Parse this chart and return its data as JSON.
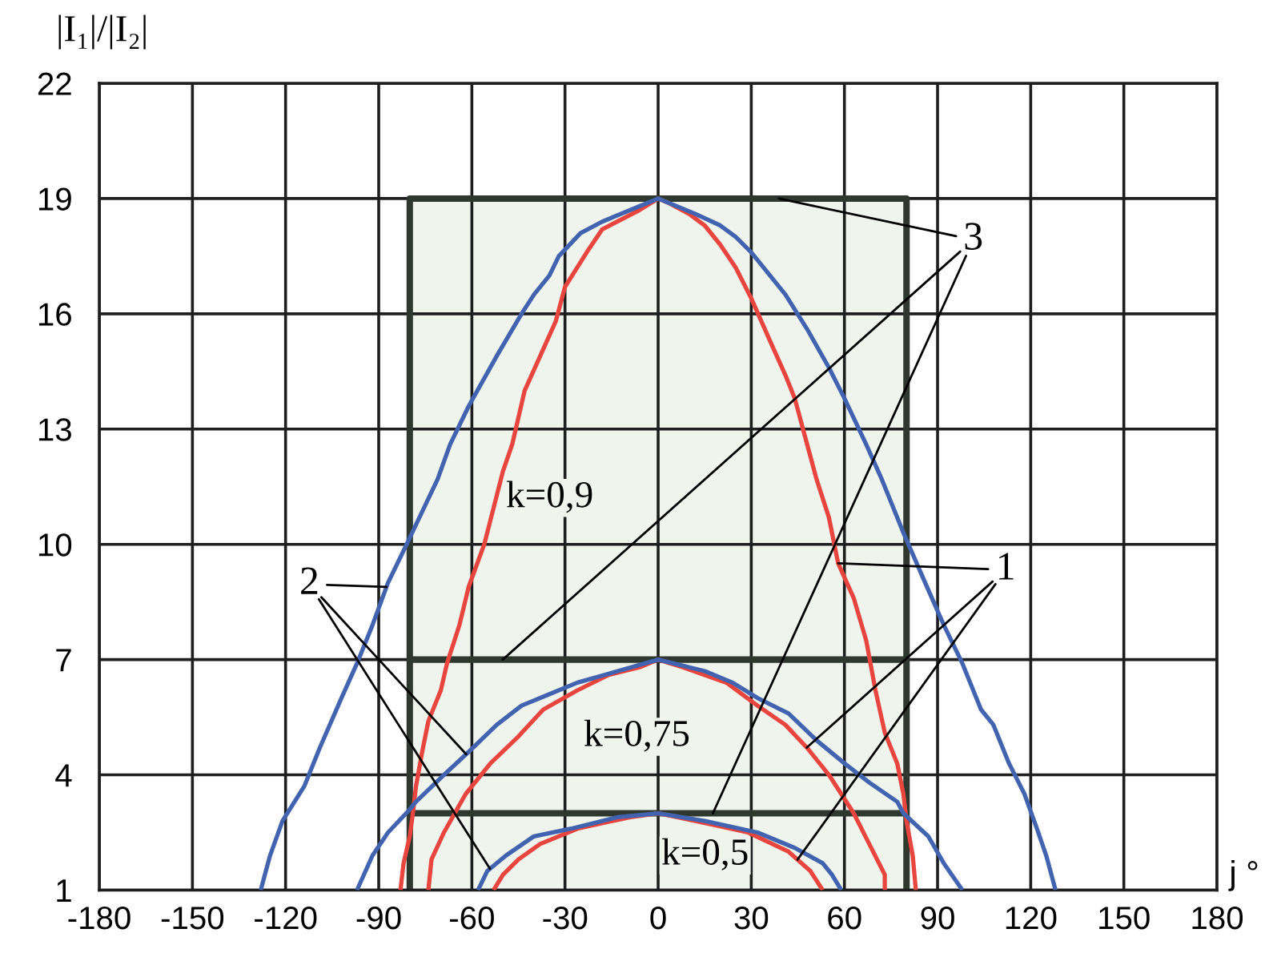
{
  "chart_data": {
    "type": "line",
    "xlabel": "j °",
    "ylabel": "|I₁|/|I₂|",
    "xlim": [
      -180,
      180
    ],
    "xticks": [
      -180,
      -150,
      -120,
      -90,
      -60,
      -30,
      0,
      30,
      60,
      90,
      120,
      150,
      180
    ],
    "ylim": [
      1,
      22
    ],
    "yticks": [
      1,
      4,
      7,
      10,
      13,
      16,
      19,
      22
    ],
    "grid": true,
    "annotations": [
      "k=0,9",
      "k=0,75",
      "k=0,5"
    ],
    "series": [
      {
        "type": "area",
        "color": "#eff5ec",
        "x": [
          -80,
          80
        ],
        "values": [
          19,
          19
        ]
      },
      {
        "name": "3",
        "color": "#2e382e",
        "x": [
          -80,
          -80,
          80,
          80
        ],
        "values": [
          1,
          19,
          19,
          1
        ]
      },
      {
        "color": "#2e382e",
        "x": [
          -80,
          80
        ],
        "values": [
          7,
          7
        ]
      },
      {
        "color": "#2e382e",
        "x": [
          -80,
          80
        ],
        "values": [
          3,
          3
        ]
      },
      {
        "name": "1",
        "color": "#e8453f",
        "x": [
          -83,
          -82,
          -80,
          -79,
          -78,
          -76,
          -74,
          -70,
          -68,
          -64,
          -61,
          -56,
          -50,
          -47,
          -43,
          -38,
          -33,
          -30,
          -23,
          -18,
          -6,
          0,
          3,
          10,
          15,
          20,
          25,
          30,
          36,
          41,
          44,
          48,
          51,
          55,
          58,
          63,
          67,
          70,
          73,
          77,
          79,
          80,
          82,
          83,
          null,
          -74,
          -73,
          -69,
          -62,
          -54,
          -45,
          -37,
          -26,
          -16,
          -6,
          0,
          8,
          22,
          32,
          41,
          48,
          55,
          63,
          68,
          73,
          73,
          null,
          -53,
          -50,
          -45,
          -38,
          -26,
          -9,
          0,
          12,
          29,
          42,
          49,
          53
        ],
        "values": [
          1.0,
          1.7,
          2.4,
          3.0,
          3.7,
          4.6,
          5.4,
          6.2,
          6.9,
          7.9,
          8.9,
          10.0,
          11.9,
          12.6,
          14.0,
          14.9,
          15.8,
          16.7,
          17.6,
          18.2,
          18.7,
          19.0,
          18.9,
          18.6,
          18.3,
          17.8,
          17.2,
          16.4,
          15.3,
          14.4,
          13.8,
          12.6,
          11.7,
          10.7,
          9.5,
          8.6,
          7.5,
          6.2,
          5.1,
          4.3,
          3.5,
          2.8,
          1.9,
          1.0,
          null,
          1.0,
          1.8,
          2.5,
          3.5,
          4.3,
          5.0,
          5.7,
          6.2,
          6.6,
          6.8,
          7.0,
          6.8,
          6.4,
          5.8,
          5.3,
          4.7,
          4.0,
          3.0,
          2.2,
          1.4,
          1.0,
          null,
          1.0,
          1.4,
          1.8,
          2.2,
          2.6,
          2.9,
          3.0,
          2.8,
          2.5,
          2.0,
          1.5,
          1.0
        ]
      },
      {
        "name": "2",
        "color": "#4263b0",
        "x": [
          -128,
          -125,
          -121,
          -114,
          -109,
          -102,
          -97,
          -92,
          -87,
          -81,
          -71,
          -67,
          -61,
          -52,
          -44,
          -40,
          -35,
          -32,
          -25,
          -18,
          -6,
          0,
          12,
          20,
          25,
          30,
          36,
          41,
          48,
          55,
          60,
          67,
          72,
          79,
          86,
          92,
          98,
          104,
          108,
          113,
          118,
          122,
          125,
          128,
          null,
          -97,
          -92,
          -87,
          -80,
          -78,
          -69,
          -61,
          -52,
          -44,
          -35,
          -26,
          -13,
          0,
          15,
          24,
          32,
          42,
          51,
          60,
          68,
          77,
          79,
          87,
          92,
          98,
          null,
          -58,
          -55,
          -49,
          -40,
          -28,
          -13,
          0,
          15,
          32,
          44,
          53,
          56,
          59
        ],
        "values": [
          1.0,
          1.9,
          2.8,
          3.7,
          4.7,
          6.0,
          6.9,
          7.9,
          9.0,
          10.0,
          11.7,
          12.6,
          13.6,
          14.9,
          16.0,
          16.5,
          17.0,
          17.5,
          18.1,
          18.4,
          18.8,
          19.0,
          18.6,
          18.3,
          18.0,
          17.6,
          17.0,
          16.5,
          15.6,
          14.6,
          13.8,
          12.6,
          11.7,
          10.3,
          9.0,
          7.9,
          6.9,
          5.7,
          5.3,
          4.3,
          3.5,
          2.6,
          1.9,
          1.0,
          null,
          1.0,
          1.9,
          2.5,
          3.1,
          3.3,
          4.0,
          4.6,
          5.3,
          5.8,
          6.1,
          6.4,
          6.7,
          7.0,
          6.7,
          6.4,
          6.0,
          5.6,
          4.9,
          4.3,
          3.8,
          3.3,
          3.0,
          2.4,
          1.7,
          1.0,
          null,
          1.0,
          1.5,
          1.9,
          2.4,
          2.6,
          2.9,
          3.0,
          2.8,
          2.5,
          2.1,
          1.7,
          1.4,
          1.0
        ]
      }
    ]
  }
}
